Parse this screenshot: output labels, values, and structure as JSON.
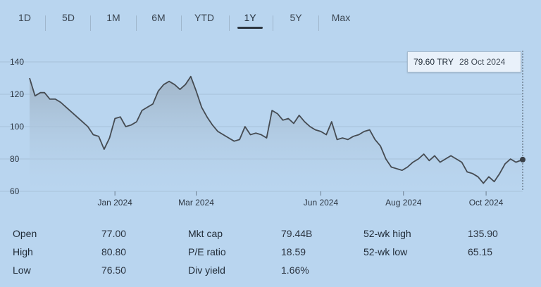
{
  "tabs": [
    "1D",
    "5D",
    "1M",
    "6M",
    "YTD",
    "1Y",
    "5Y",
    "Max"
  ],
  "selected_tab": "1Y",
  "tooltip": {
    "price": "79.60 TRY",
    "date": "28 Oct 2024"
  },
  "stats": {
    "open_label": "Open",
    "open": "77.00",
    "high_label": "High",
    "high": "80.80",
    "low_label": "Low",
    "low": "76.50",
    "mktcap_label": "Mkt cap",
    "mktcap": "79.44B",
    "pe_label": "P/E ratio",
    "pe": "18.59",
    "div_label": "Div yield",
    "div": "1.66%",
    "wk52h_label": "52-wk high",
    "wk52h": "135.90",
    "wk52l_label": "52-wk low",
    "wk52l": "65.15"
  },
  "colors": {
    "line": "#454b52",
    "fill_top": "#9fb3c6",
    "fill_bottom": "#b9d5ef",
    "grid": "#a7c1da"
  },
  "chart_data": {
    "type": "area",
    "title": "",
    "xlabel": "",
    "ylabel": "",
    "ylim": [
      60,
      140
    ],
    "yticks": [
      60,
      80,
      100,
      120,
      140
    ],
    "x_tick_labels": [
      "Jan 2024",
      "Mar 2024",
      "Jun 2024",
      "Aug 2024",
      "Oct 2024"
    ],
    "x_tick_dates": [
      "2024-01-01",
      "2024-03-01",
      "2024-06-01",
      "2024-08-01",
      "2024-10-01"
    ],
    "x_range": [
      "2023-10-30",
      "2024-10-28"
    ],
    "grid": true,
    "legend": "none",
    "series": [
      {
        "x": [
          "2023-10-30",
          "2023-11-03",
          "2023-11-07",
          "2023-11-10",
          "2023-11-14",
          "2023-11-18",
          "2023-11-22",
          "2023-11-26",
          "2023-11-30",
          "2023-12-04",
          "2023-12-08",
          "2023-12-12",
          "2023-12-16",
          "2023-12-20",
          "2023-12-24",
          "2023-12-28",
          "2024-01-01",
          "2024-01-05",
          "2024-01-09",
          "2024-01-13",
          "2024-01-17",
          "2024-01-21",
          "2024-01-25",
          "2024-01-29",
          "2024-02-02",
          "2024-02-06",
          "2024-02-10",
          "2024-02-14",
          "2024-02-18",
          "2024-02-22",
          "2024-02-26",
          "2024-03-01",
          "2024-03-05",
          "2024-03-09",
          "2024-03-13",
          "2024-03-17",
          "2024-03-21",
          "2024-03-25",
          "2024-03-29",
          "2024-04-02",
          "2024-04-06",
          "2024-04-10",
          "2024-04-14",
          "2024-04-18",
          "2024-04-22",
          "2024-04-26",
          "2024-04-30",
          "2024-05-04",
          "2024-05-08",
          "2024-05-12",
          "2024-05-16",
          "2024-05-20",
          "2024-05-24",
          "2024-05-28",
          "2024-06-01",
          "2024-06-05",
          "2024-06-09",
          "2024-06-13",
          "2024-06-17",
          "2024-06-21",
          "2024-06-25",
          "2024-06-29",
          "2024-07-03",
          "2024-07-07",
          "2024-07-11",
          "2024-07-15",
          "2024-07-19",
          "2024-07-23",
          "2024-07-27",
          "2024-07-31",
          "2024-08-04",
          "2024-08-08",
          "2024-08-12",
          "2024-08-16",
          "2024-08-20",
          "2024-08-24",
          "2024-08-28",
          "2024-09-01",
          "2024-09-05",
          "2024-09-09",
          "2024-09-13",
          "2024-09-17",
          "2024-09-21",
          "2024-09-25",
          "2024-09-29",
          "2024-10-03",
          "2024-10-07",
          "2024-10-11",
          "2024-10-15",
          "2024-10-19",
          "2024-10-23",
          "2024-10-28"
        ],
        "y": [
          130,
          119,
          121,
          121,
          117,
          117,
          115,
          112,
          109,
          106,
          103,
          100,
          95,
          94,
          86,
          93,
          105,
          106,
          100,
          101,
          103,
          110,
          112,
          114,
          122,
          126,
          128,
          126,
          123,
          126,
          131,
          122,
          112,
          106,
          101,
          97,
          95,
          93,
          91,
          92,
          100,
          95,
          96,
          95,
          93,
          110,
          108,
          104,
          105,
          102,
          107,
          103,
          100,
          98,
          97,
          95,
          103,
          92,
          93,
          92,
          94,
          95,
          97,
          98,
          92,
          88,
          80,
          75,
          74,
          73,
          75,
          78,
          80,
          83,
          79,
          82,
          78,
          80,
          82,
          80,
          78,
          72,
          71,
          69,
          65,
          69,
          66,
          71,
          77,
          80,
          78,
          79.6
        ]
      }
    ],
    "highlight_point": {
      "x": "2024-10-28",
      "y": 79.6
    }
  }
}
